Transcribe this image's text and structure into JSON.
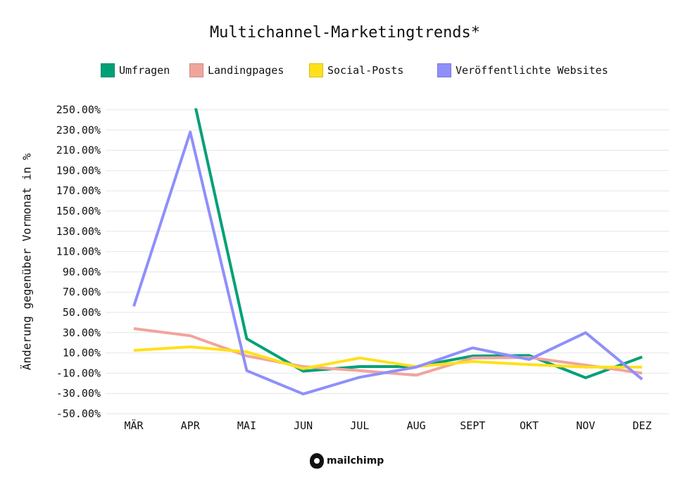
{
  "chart_data": {
    "type": "line",
    "title": "Multichannel-Marketingtrends*",
    "xlabel": "",
    "ylabel": "Änderung gegenüber Vormonat in %",
    "categories": [
      "MÄR",
      "APR",
      "MAI",
      "JUN",
      "JUL",
      "AUG",
      "SEPT",
      "OKT",
      "NOV",
      "DEZ"
    ],
    "ylim": [
      -50,
      250
    ],
    "yticks": [
      -50,
      -30,
      -10,
      10,
      30,
      50,
      70,
      90,
      110,
      130,
      150,
      170,
      190,
      210,
      230,
      250
    ],
    "ytick_labels": [
      "-50.00%",
      "-30.00%",
      "-10.00%",
      "10.00%",
      "30.00%",
      "50.00%",
      "70.00%",
      "90.00%",
      "110.00%",
      "130.00%",
      "150.00%",
      "170.00%",
      "190.00%",
      "210.00%",
      "230.00%",
      "250.00%"
    ],
    "grid": true,
    "legend_position": "top",
    "series": [
      {
        "name": "Umfragen",
        "color": "#00a077",
        "values": [
          null,
          276,
          24,
          -8,
          -3.5,
          -3.5,
          7,
          7.5,
          -14.5,
          6
        ]
      },
      {
        "name": "Landingpages",
        "color": "#f0a59c",
        "values": [
          34,
          27,
          7,
          -3.5,
          -7.5,
          -12,
          5,
          5.5,
          -2,
          -10
        ]
      },
      {
        "name": "Social-Posts",
        "color": "#ffe01b",
        "values": [
          12.5,
          16,
          11,
          -5.5,
          5,
          -3.5,
          1.5,
          -1.5,
          -4,
          -4
        ]
      },
      {
        "name": "Veröffentlichte Websites",
        "color": "#8f8ffb",
        "values": [
          56,
          228,
          -7.5,
          -30.5,
          -14,
          -4,
          15,
          3.5,
          30,
          -16
        ]
      }
    ]
  },
  "footer": {
    "logo_text": "mailchimp"
  }
}
